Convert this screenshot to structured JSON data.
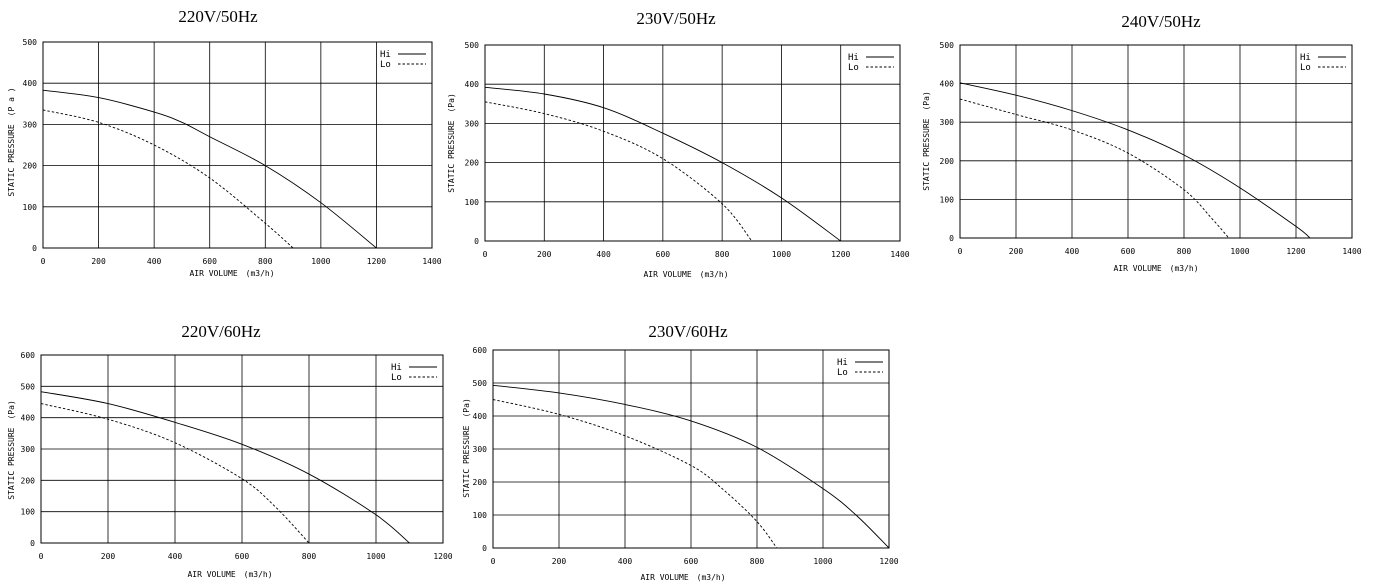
{
  "chart_data": [
    {
      "type": "line",
      "title": "220V/50Hz",
      "xlabel": "AIR VOLUME　(m3/h)",
      "ylabel": "STATIC PRESSURE　(P a )",
      "xlim": [
        0,
        1400
      ],
      "ylim": [
        0,
        500
      ],
      "xticks": [
        "0",
        "200",
        "400",
        "600",
        "800",
        "1000",
        "1200",
        "1400"
      ],
      "yticks": [
        "0",
        "100",
        "200",
        "300",
        "400",
        "500"
      ],
      "grid": true,
      "legend": "top-right",
      "series": [
        {
          "name": "Hi",
          "style": "solid",
          "x": [
            0,
            200,
            400,
            500,
            600,
            800,
            1000,
            1200
          ],
          "y": [
            383,
            365,
            330,
            305,
            270,
            200,
            110,
            0
          ]
        },
        {
          "name": "Lo",
          "style": "dashed",
          "x": [
            0,
            200,
            400,
            600,
            800,
            900
          ],
          "y": [
            335,
            305,
            250,
            170,
            60,
            0
          ]
        }
      ]
    },
    {
      "type": "line",
      "title": "230V/50Hz",
      "xlabel": "AIR VOLUME　(m3/h)",
      "ylabel": "STATIC PRESSURE　(Pa)",
      "xlim": [
        0,
        1400
      ],
      "ylim": [
        0,
        500
      ],
      "xticks": [
        "0",
        "200",
        "400",
        "600",
        "800",
        "1000",
        "1200",
        "1400"
      ],
      "yticks": [
        "0",
        "100",
        "200",
        "300",
        "400",
        "500"
      ],
      "grid": true,
      "legend": "top-right",
      "series": [
        {
          "name": "Hi",
          "style": "solid",
          "x": [
            0,
            200,
            400,
            600,
            800,
            1000,
            1200
          ],
          "y": [
            392,
            375,
            340,
            275,
            200,
            110,
            0
          ]
        },
        {
          "name": "Lo",
          "style": "dashed",
          "x": [
            0,
            200,
            400,
            600,
            800,
            900
          ],
          "y": [
            355,
            325,
            280,
            210,
            95,
            0
          ]
        }
      ]
    },
    {
      "type": "line",
      "title": "240V/50Hz",
      "xlabel": "AIR VOLUME　(m3/h)",
      "ylabel": "STATIC PRESSURE　(Pa)",
      "xlim": [
        0,
        1400
      ],
      "ylim": [
        0,
        500
      ],
      "xticks": [
        "0",
        "200",
        "400",
        "600",
        "800",
        "1000",
        "1200",
        "1400"
      ],
      "yticks": [
        "0",
        "100",
        "200",
        "300",
        "400",
        "500"
      ],
      "grid": true,
      "legend": "top-right",
      "series": [
        {
          "name": "Hi",
          "style": "solid",
          "x": [
            0,
            200,
            400,
            600,
            800,
            1000,
            1200,
            1250
          ],
          "y": [
            402,
            370,
            330,
            280,
            215,
            130,
            30,
            0
          ]
        },
        {
          "name": "Lo",
          "style": "dashed",
          "x": [
            0,
            200,
            400,
            600,
            800,
            900,
            960
          ],
          "y": [
            360,
            320,
            280,
            220,
            125,
            50,
            0
          ]
        }
      ]
    },
    {
      "type": "line",
      "title": "220V/60Hz",
      "xlabel": "AIR VOLUME　(m3/h)",
      "ylabel": "STATIC PRESSURE　(Pa)",
      "xlim": [
        0,
        1200
      ],
      "ylim": [
        0,
        600
      ],
      "xticks": [
        "0",
        "200",
        "400",
        "600",
        "800",
        "1000",
        "1200"
      ],
      "yticks": [
        "0",
        "100",
        "200",
        "300",
        "400",
        "500",
        "600"
      ],
      "grid": true,
      "legend": "top-right",
      "series": [
        {
          "name": "Hi",
          "style": "solid",
          "x": [
            0,
            200,
            400,
            600,
            800,
            1000,
            1100
          ],
          "y": [
            483,
            445,
            385,
            315,
            220,
            90,
            0
          ]
        },
        {
          "name": "Lo",
          "style": "dashed",
          "x": [
            0,
            200,
            400,
            600,
            700,
            800
          ],
          "y": [
            445,
            395,
            320,
            205,
            115,
            0
          ]
        }
      ]
    },
    {
      "type": "line",
      "title": "230V/60Hz",
      "xlabel": "AIR VOLUME　(m3/h)",
      "ylabel": "STATIC PRESSURE　(Pa)",
      "xlim": [
        0,
        1200
      ],
      "ylim": [
        0,
        600
      ],
      "xticks": [
        "0",
        "200",
        "400",
        "600",
        "800",
        "1000",
        "1200"
      ],
      "yticks": [
        "0",
        "100",
        "200",
        "300",
        "400",
        "500",
        "600"
      ],
      "grid": true,
      "legend": "top-right",
      "series": [
        {
          "name": "Hi",
          "style": "solid",
          "x": [
            0,
            200,
            400,
            600,
            800,
            1000,
            1100,
            1200
          ],
          "y": [
            493,
            470,
            435,
            385,
            305,
            180,
            100,
            0
          ]
        },
        {
          "name": "Lo",
          "style": "dashed",
          "x": [
            0,
            200,
            400,
            600,
            700,
            800,
            860
          ],
          "y": [
            450,
            405,
            340,
            250,
            175,
            80,
            0
          ]
        }
      ]
    }
  ]
}
